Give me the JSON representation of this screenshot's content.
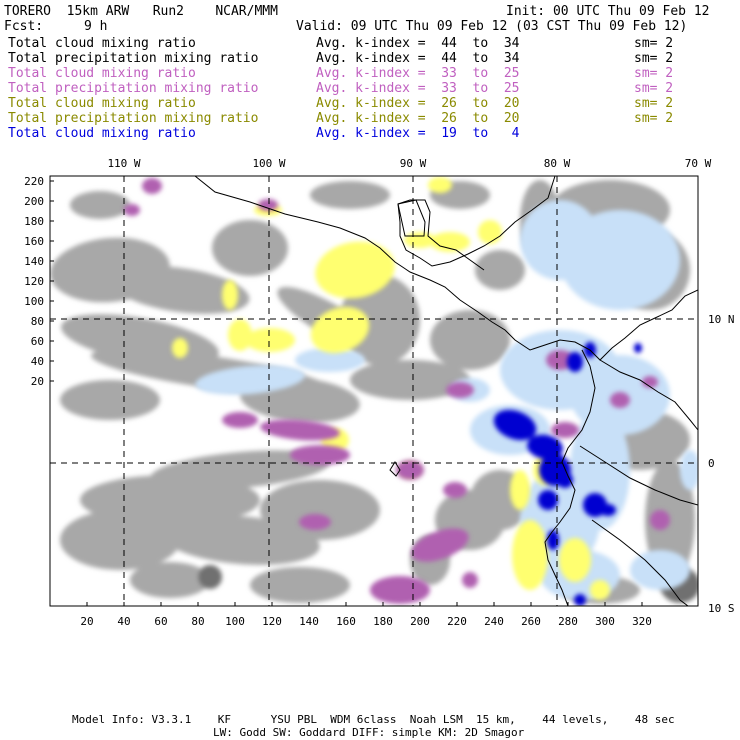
{
  "header": {
    "model": "TORERO  15km ARW   Run2    NCAR/MMM",
    "init": "Init: 00 UTC Thu 09 Feb 12",
    "fcst_label": "Fcst:",
    "fcst_value": "9 h",
    "valid": "Valid: 09 UTC Thu 09 Feb 12 (03 CST Thu 09 Feb 12)"
  },
  "legend": [
    {
      "field": "Total cloud mixing ratio",
      "kindex": "Avg. k-index =  44  to  34",
      "sm": "sm= 2",
      "color": "#000000"
    },
    {
      "field": "Total precipitation mixing ratio",
      "kindex": "Avg. k-index =  44  to  34",
      "sm": "sm= 2",
      "color": "#000000"
    },
    {
      "field": "Total cloud mixing ratio",
      "kindex": "Avg. k-index =  33  to  25",
      "sm": "sm= 2",
      "color": "#c060c0"
    },
    {
      "field": "Total precipitation mixing ratio",
      "kindex": "Avg. k-index =  33  to  25",
      "sm": "sm= 2",
      "color": "#c060c0"
    },
    {
      "field": "Total cloud mixing ratio",
      "kindex": "Avg. k-index =  26  to  20",
      "sm": "sm= 2",
      "color": "#8a8a00"
    },
    {
      "field": "Total precipitation mixing ratio",
      "kindex": "Avg. k-index =  26  to  20",
      "sm": "sm= 2",
      "color": "#8a8a00"
    },
    {
      "field": "Total cloud mixing ratio",
      "kindex": "Avg. k-index =  19  to   4",
      "sm": "",
      "color": "#0000dd"
    }
  ],
  "map": {
    "lon_labels": [
      "110 W",
      "100 W",
      "90 W",
      "80 W",
      "70 W"
    ],
    "lat_labels": [
      "10 N",
      "0",
      "10 S"
    ],
    "y_ticks": [
      "220",
      "200",
      "180",
      "160",
      "140",
      "120",
      "100",
      "80",
      "60",
      "40",
      "20"
    ],
    "x_ticks": [
      "20",
      "40",
      "60",
      "80",
      "100",
      "120",
      "140",
      "160",
      "180",
      "200",
      "220",
      "240",
      "260",
      "280",
      "300",
      "320"
    ],
    "colors": {
      "gray_cloud": "#a8a8a8",
      "dark_gray": "#707070",
      "purple": "#b060b0",
      "yellow": "#ffff70",
      "light_blue": "#c8e0f8",
      "mid_blue": "#5080e0",
      "dark_blue": "#0000d0",
      "coast": "#000000"
    }
  },
  "footer": {
    "line1": "Model Info: V3.3.1    KF      YSU PBL  WDM 6class  Noah LSM  15 km,    44 levels,    48 sec",
    "line2": "LW: Godd SW: Goddard DIFF: simple KM: 2D Smagor"
  }
}
